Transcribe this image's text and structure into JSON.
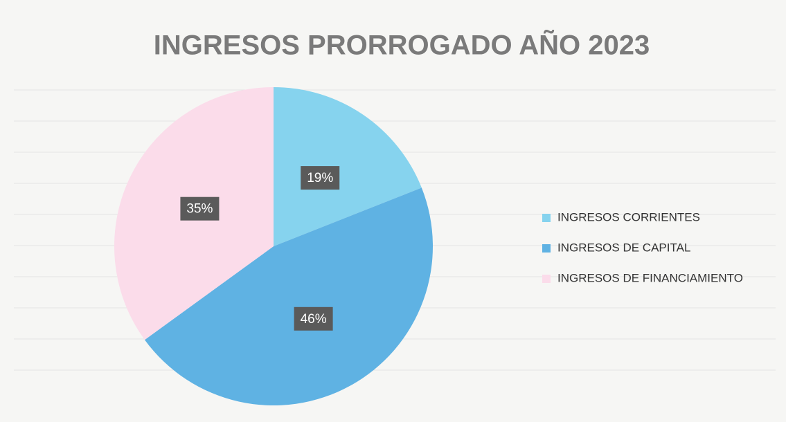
{
  "chart_data": {
    "type": "pie",
    "title": "INGRESOS PRORROGADO AÑO 2023",
    "categories": [
      "INGRESOS CORRIENTES",
      "INGRESOS DE CAPITAL",
      "INGRESOS DE FINANCIAMIENTO"
    ],
    "values": [
      19,
      46,
      35
    ],
    "value_labels": [
      "19%",
      "46%",
      "35%"
    ],
    "colors": [
      "#86d3ee",
      "#5fb2e3",
      "#fbdcea"
    ],
    "legend": "right"
  }
}
